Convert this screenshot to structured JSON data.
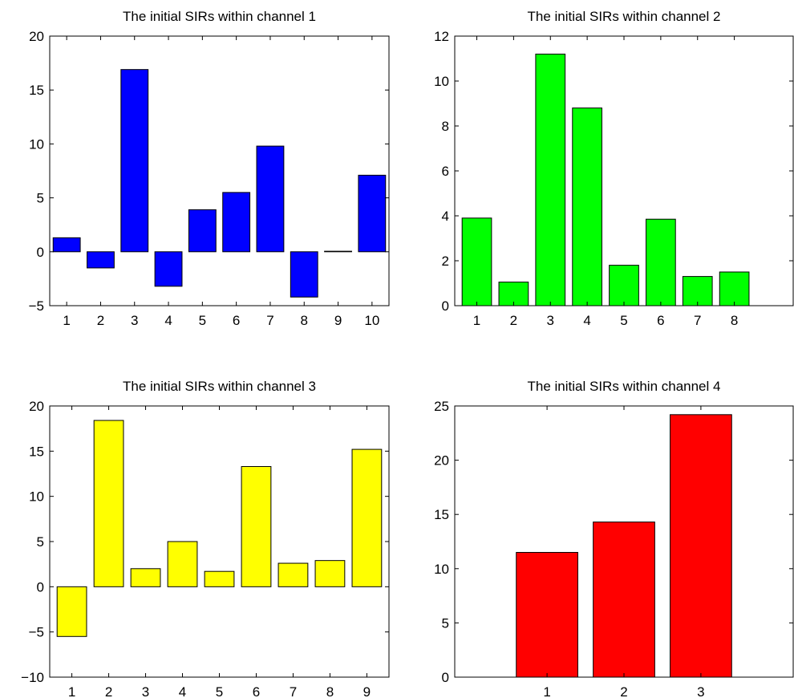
{
  "chart_data": [
    {
      "type": "bar",
      "title": "The initial SIRs within channel 1",
      "categories": [
        "1",
        "2",
        "3",
        "4",
        "5",
        "6",
        "7",
        "8",
        "9",
        "10"
      ],
      "values": [
        1.3,
        -1.5,
        16.9,
        -3.2,
        3.9,
        5.5,
        9.8,
        -4.2,
        0.05,
        7.1
      ],
      "color": "#0000ff",
      "ylim": [
        -5,
        20
      ],
      "yticks": [
        -5,
        0,
        5,
        10,
        15,
        20
      ],
      "ytick_labels": [
        "−5",
        "0",
        "5",
        "10",
        "15",
        "20"
      ],
      "xlim": [
        0.5,
        10.5
      ],
      "xlabel": "",
      "ylabel": "",
      "grid": false
    },
    {
      "type": "bar",
      "title": "The initial SIRs within channel 2",
      "categories": [
        "1",
        "2",
        "3",
        "4",
        "5",
        "6",
        "7",
        "8"
      ],
      "values": [
        3.9,
        1.05,
        11.2,
        8.8,
        1.8,
        3.85,
        1.3,
        1.5
      ],
      "color": "#00ff00",
      "ylim": [
        0,
        12
      ],
      "yticks": [
        0,
        2,
        4,
        6,
        8,
        10,
        12
      ],
      "ytick_labels": [
        "0",
        "2",
        "4",
        "6",
        "8",
        "10",
        "12"
      ],
      "xlim": [
        0.4,
        9.6
      ],
      "xlabel": "",
      "ylabel": "",
      "grid": false
    },
    {
      "type": "bar",
      "title": "The initial SIRs within channel 3",
      "categories": [
        "1",
        "2",
        "3",
        "4",
        "5",
        "6",
        "7",
        "8",
        "9"
      ],
      "values": [
        -5.5,
        18.4,
        2.0,
        5.0,
        1.7,
        13.3,
        2.6,
        2.9,
        15.2
      ],
      "color": "#ffff00",
      "ylim": [
        -10,
        20
      ],
      "yticks": [
        -10,
        -5,
        0,
        5,
        10,
        15,
        20
      ],
      "ytick_labels": [
        "−10",
        "−5",
        "0",
        "5",
        "10",
        "15",
        "20"
      ],
      "xlim": [
        0.4,
        9.6
      ],
      "xlabel": "",
      "ylabel": "",
      "grid": false
    },
    {
      "type": "bar",
      "title": "The initial SIRs within channel 4",
      "categories": [
        "1",
        "2",
        "3"
      ],
      "values": [
        11.5,
        14.3,
        24.2
      ],
      "color": "#ff0000",
      "ylim": [
        0,
        25
      ],
      "yticks": [
        0,
        5,
        10,
        15,
        20,
        25
      ],
      "ytick_labels": [
        "0",
        "5",
        "10",
        "15",
        "20",
        "25"
      ],
      "xlim": [
        -0.2,
        4.2
      ],
      "xlabel": "",
      "ylabel": "",
      "grid": false
    }
  ]
}
